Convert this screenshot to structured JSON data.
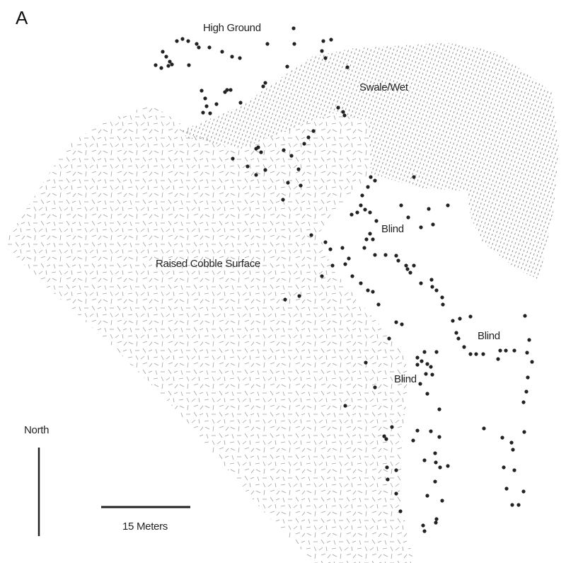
{
  "panel_label": "A",
  "zones": {
    "high_ground": "High Ground",
    "swale": "Swale/Wet",
    "cobble": "Raised Cobble Surface"
  },
  "features": {
    "blind_1": "Blind",
    "blind_2": "Blind",
    "blind_3": "Blind"
  },
  "north_arrow": {
    "label": "North"
  },
  "scale_bar": {
    "label": "15 Meters"
  },
  "colors": {
    "points": "#222222",
    "cobble_hatch": "#9a9a9a",
    "swale_hatch": "#777777",
    "lines": "#222222"
  }
}
